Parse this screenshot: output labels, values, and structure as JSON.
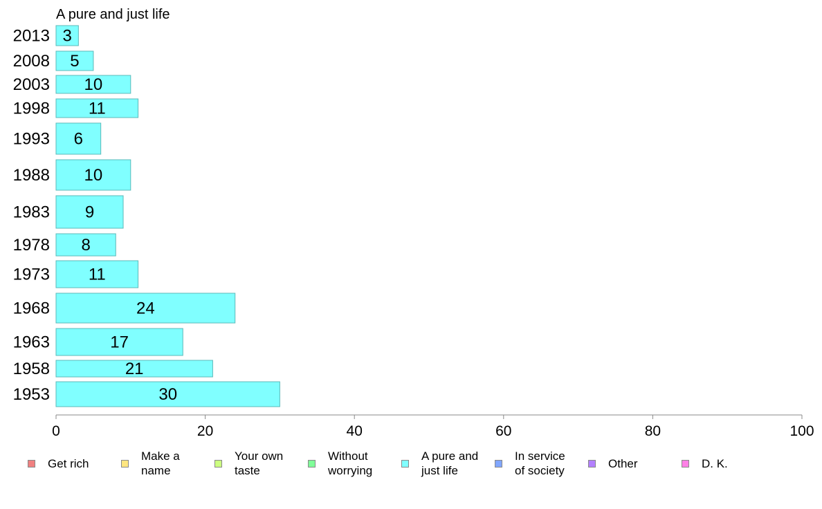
{
  "chart_data": {
    "type": "bar",
    "orientation": "horizontal",
    "title": "A pure and just life",
    "xlabel": "",
    "ylabel": "",
    "xlim": [
      0,
      100
    ],
    "x_ticks": [
      "0",
      "20",
      "40",
      "60",
      "80",
      "100"
    ],
    "grid": false,
    "legend_placement": "bottom",
    "bar_color": "#80ffff",
    "bar_edge_color": "#5bb8b8",
    "categories": [
      "2013",
      "2008",
      "2003",
      "1998",
      "1993",
      "1988",
      "1983",
      "1978",
      "1973",
      "1968",
      "1963",
      "1958",
      "1953"
    ],
    "values": [
      3,
      5,
      10,
      11,
      6,
      10,
      9,
      8,
      11,
      24,
      17,
      21,
      30
    ],
    "value_labels": [
      "3",
      "5",
      "10",
      "11",
      "6",
      "10",
      "9",
      "8",
      "11",
      "24",
      "17",
      "21",
      "30"
    ]
  },
  "legend": [
    {
      "label": "Get rich",
      "color": "#f08080"
    },
    {
      "label": "Make a name",
      "color": "#ffe680"
    },
    {
      "label": "Your own taste",
      "color": "#ccff80"
    },
    {
      "label": "Without worrying",
      "color": "#80ff99"
    },
    {
      "label": "A pure and just life",
      "color": "#80ffff"
    },
    {
      "label": "In service of society",
      "color": "#80a6ff"
    },
    {
      "label": "Other",
      "color": "#b380ff"
    },
    {
      "label": "D. K.",
      "color": "#ff80e6"
    }
  ]
}
